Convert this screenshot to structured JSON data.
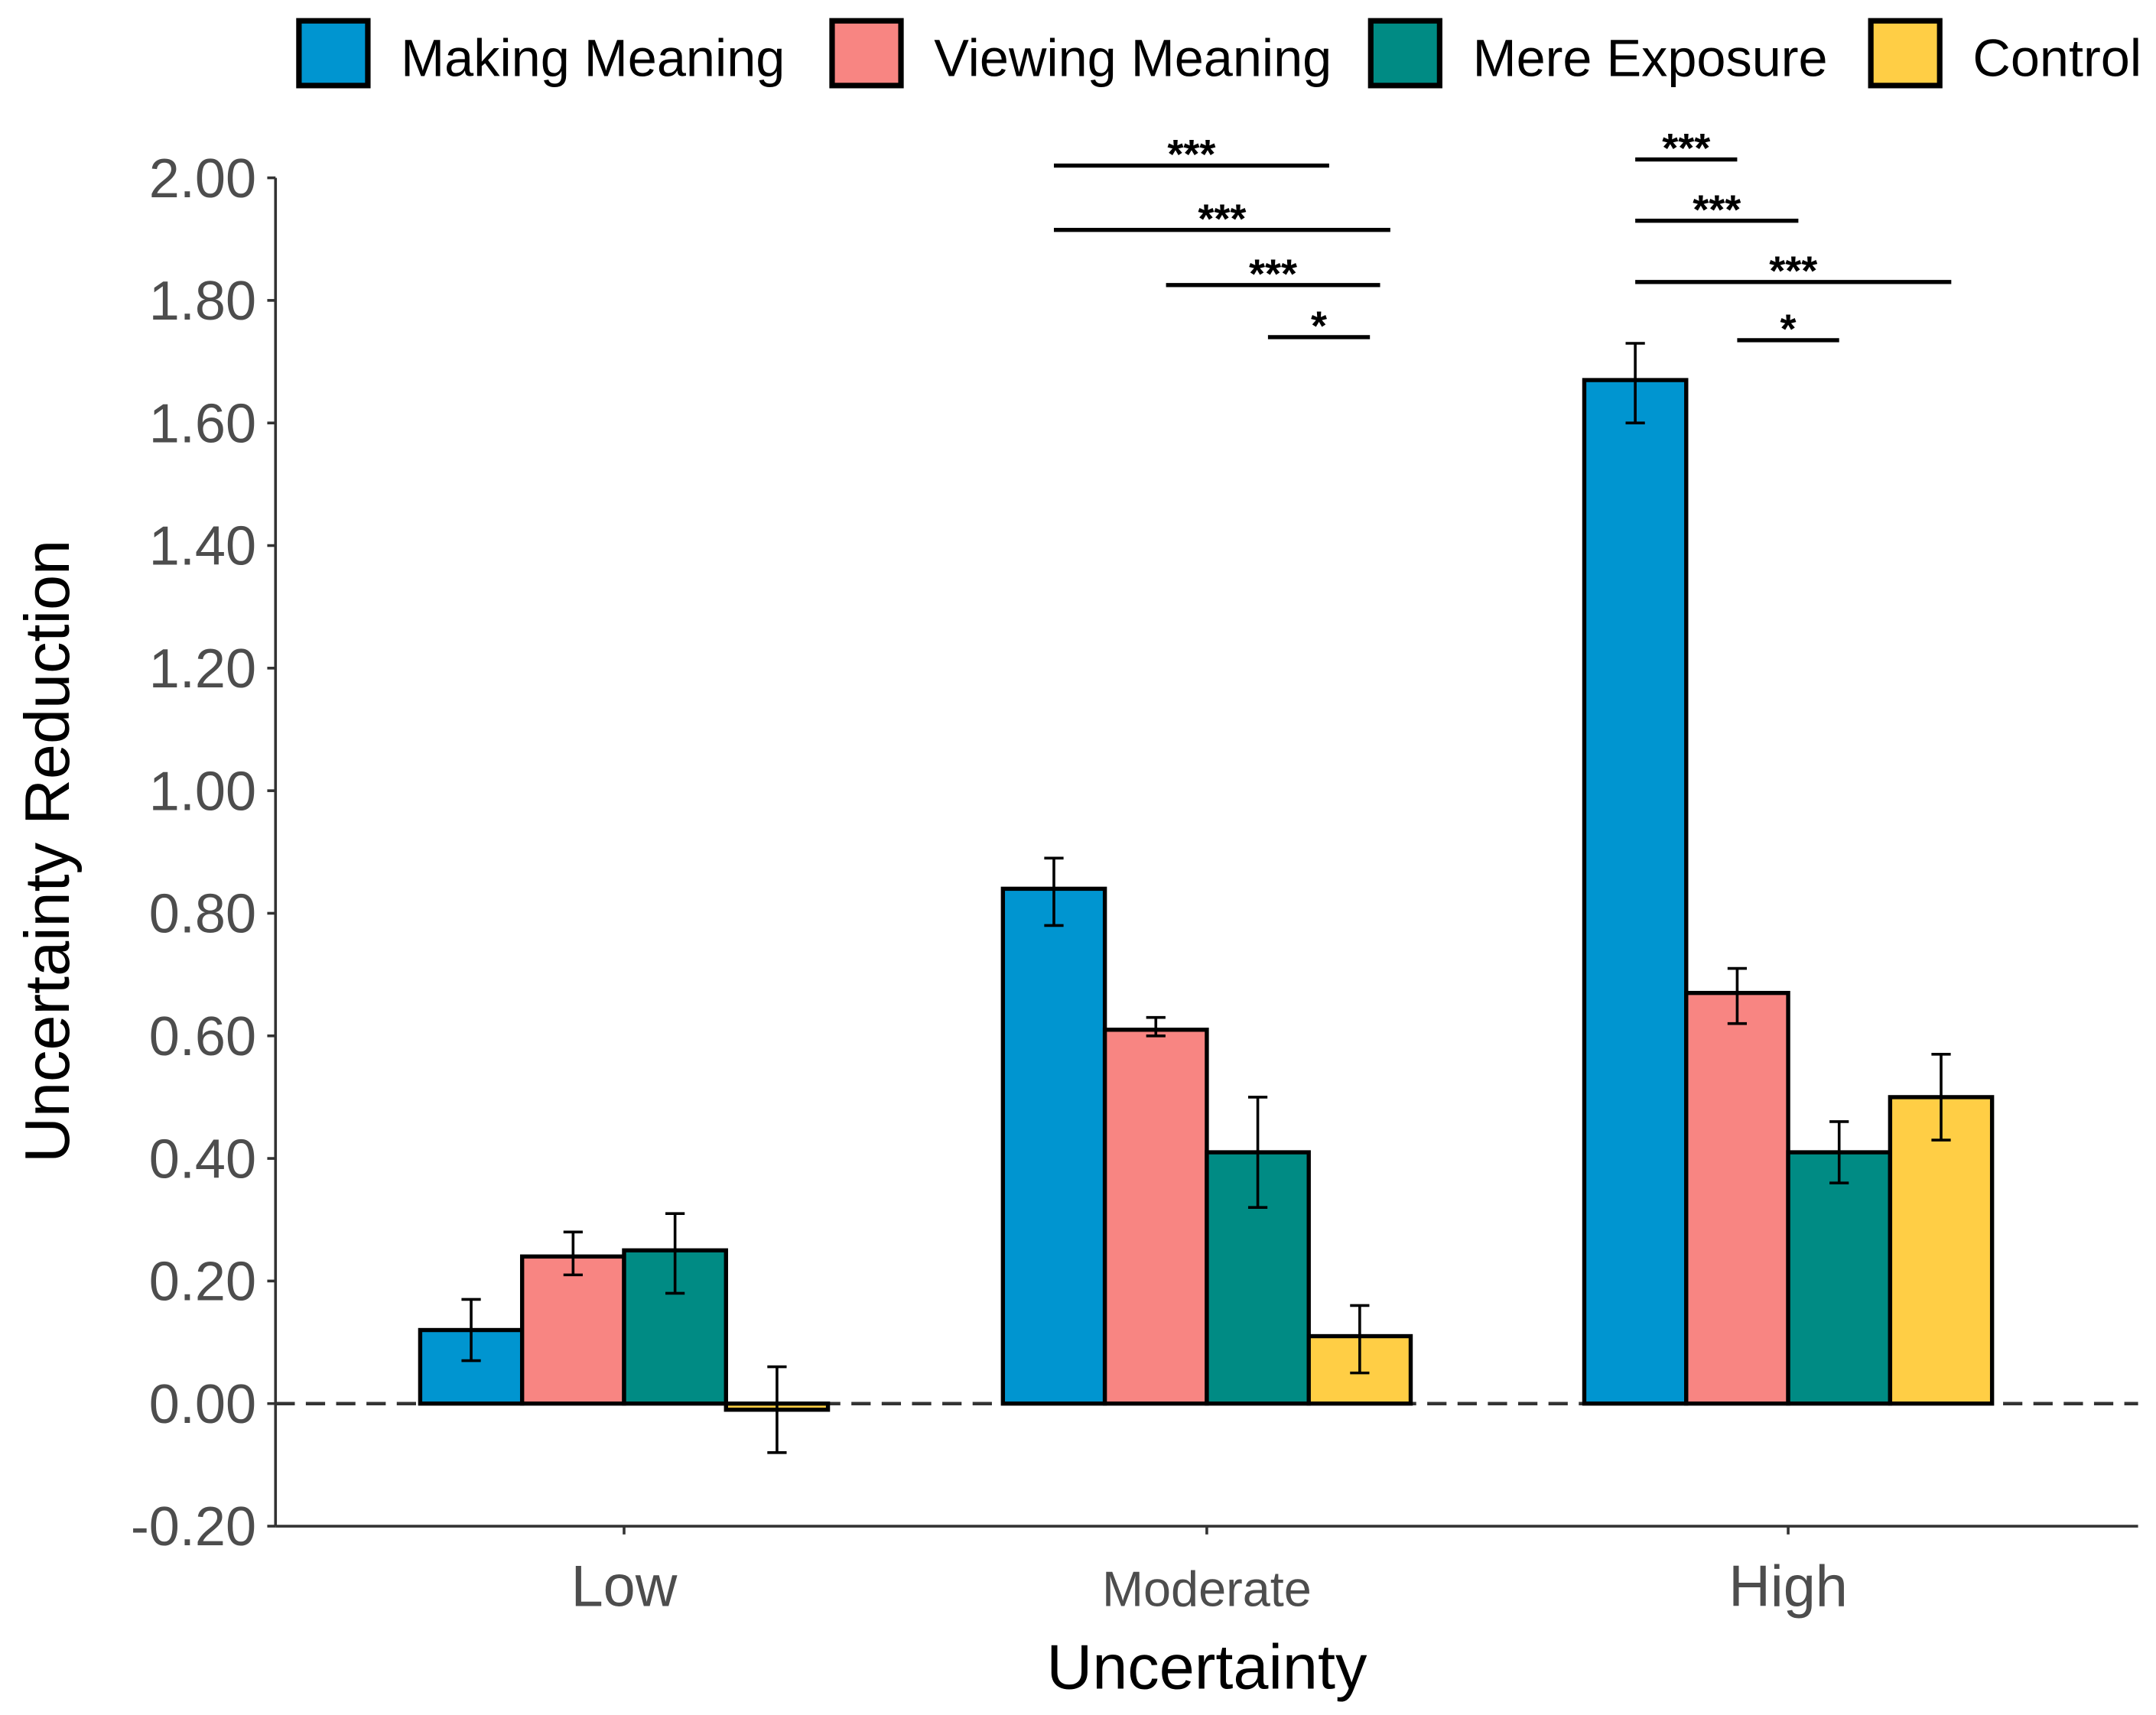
{
  "chart_data": {
    "type": "bar",
    "title": "",
    "xlabel": "Uncertainty",
    "ylabel": "Uncertainty Reduction",
    "ylim": [
      -0.2,
      2.0
    ],
    "yticks": [
      "-0.20",
      "0.00",
      "0.20",
      "0.40",
      "0.60",
      "0.80",
      "1.00",
      "1.20",
      "1.40",
      "1.60",
      "1.80",
      "2.00"
    ],
    "ytick_values": [
      -0.2,
      0,
      0.2,
      0.4,
      0.6,
      0.8,
      1.0,
      1.2,
      1.4,
      1.6,
      1.8,
      2.0
    ],
    "categories": [
      "Low",
      "Moderate",
      "High"
    ],
    "legend_position": "top",
    "reference_line": 0,
    "series": [
      {
        "name": "Making Meaning",
        "color": "#0095D0",
        "values": [
          0.12,
          0.84,
          1.67
        ],
        "err_low": [
          0.07,
          0.78,
          1.6
        ],
        "err_high": [
          0.17,
          0.89,
          1.73
        ]
      },
      {
        "name": "Viewing Meaning",
        "color": "#F88582",
        "values": [
          0.24,
          0.61,
          0.67
        ],
        "err_low": [
          0.21,
          0.6,
          0.62
        ],
        "err_high": [
          0.28,
          0.63,
          0.71
        ]
      },
      {
        "name": "Mere Exposure",
        "color": "#008B84",
        "values": [
          0.25,
          0.41,
          0.41
        ],
        "err_low": [
          0.18,
          0.32,
          0.36
        ],
        "err_high": [
          0.31,
          0.5,
          0.46
        ]
      },
      {
        "name": "Control",
        "color": "#FFCE45",
        "values": [
          -0.01,
          0.11,
          0.5
        ],
        "err_low": [
          -0.08,
          0.05,
          0.43
        ],
        "err_high": [
          0.06,
          0.16,
          0.57
        ]
      }
    ],
    "significance": [
      {
        "category": 1,
        "from": 0,
        "to": 2.7,
        "level": 2.02,
        "label": "***"
      },
      {
        "category": 1,
        "from": 0,
        "to": 3.3,
        "level": 1.915,
        "label": "***"
      },
      {
        "category": 1,
        "from": 1.1,
        "to": 3.2,
        "level": 1.825,
        "label": "***"
      },
      {
        "category": 1,
        "from": 2.1,
        "to": 3.1,
        "level": 1.74,
        "label": "*"
      },
      {
        "category": 2,
        "from": 0,
        "to": 1,
        "level": 2.03,
        "label": "***"
      },
      {
        "category": 2,
        "from": 0,
        "to": 1.6,
        "level": 1.93,
        "label": "***"
      },
      {
        "category": 2,
        "from": 0,
        "to": 3.1,
        "level": 1.83,
        "label": "***"
      },
      {
        "category": 2,
        "from": 1,
        "to": 2,
        "level": 1.735,
        "label": "*"
      }
    ]
  }
}
